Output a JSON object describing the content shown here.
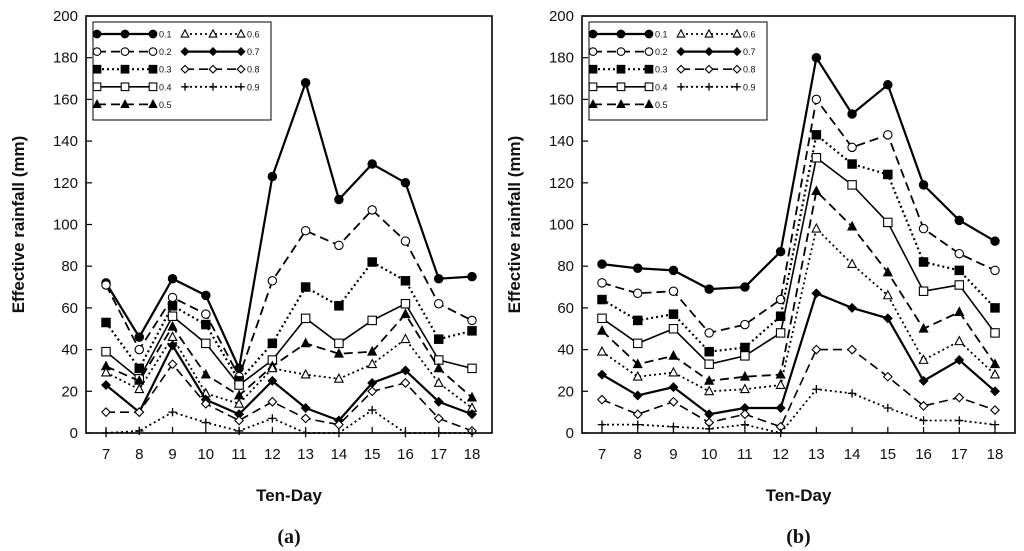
{
  "chart_data": [
    {
      "type": "line",
      "panel_label": "(a)",
      "xlabel": "Ten-Day",
      "ylabel": "Effective rainfall (mm)",
      "xlim": [
        7,
        18
      ],
      "ylim": [
        0,
        200
      ],
      "x_ticks": [
        7,
        8,
        9,
        10,
        11,
        12,
        13,
        14,
        15,
        16,
        17,
        18
      ],
      "y_ticks": [
        0,
        20,
        40,
        60,
        80,
        100,
        120,
        140,
        160,
        180,
        200
      ],
      "grid": false,
      "legend_position": "top-left",
      "x": [
        7,
        8,
        9,
        10,
        11,
        12,
        13,
        14,
        15,
        16,
        17,
        18
      ],
      "series": [
        {
          "name": "0.1",
          "values": [
            72,
            46,
            74,
            66,
            31,
            123,
            168,
            112,
            129,
            120,
            74,
            75
          ]
        },
        {
          "name": "0.2",
          "values": [
            71,
            40,
            65,
            57,
            27,
            73,
            97,
            90,
            107,
            92,
            62,
            54
          ]
        },
        {
          "name": "0.3",
          "values": [
            53,
            31,
            61,
            52,
            25,
            43,
            70,
            61,
            82,
            73,
            45,
            49
          ]
        },
        {
          "name": "0.4",
          "values": [
            39,
            26,
            56,
            43,
            23,
            35,
            55,
            43,
            54,
            62,
            35,
            31
          ]
        },
        {
          "name": "0.5",
          "values": [
            32,
            25,
            51,
            28,
            18,
            32,
            43,
            38,
            39,
            57,
            31,
            17
          ]
        },
        {
          "name": "0.6",
          "values": [
            29,
            21,
            46,
            19,
            14,
            31,
            28,
            26,
            33,
            45,
            24,
            12
          ]
        },
        {
          "name": "0.7",
          "values": [
            23,
            10,
            42,
            16,
            9,
            25,
            12,
            6,
            24,
            30,
            15,
            9
          ]
        },
        {
          "name": "0.8",
          "values": [
            10,
            10,
            33,
            14,
            6,
            15,
            7,
            4,
            20,
            24,
            7,
            1
          ]
        },
        {
          "name": "0.9",
          "values": [
            0,
            1,
            10,
            5,
            1,
            7,
            0,
            0,
            11,
            0,
            0,
            0
          ]
        }
      ]
    },
    {
      "type": "line",
      "panel_label": "(b)",
      "xlabel": "Ten-Day",
      "ylabel": "Effective rainfall (mm)",
      "xlim": [
        7,
        18
      ],
      "ylim": [
        0,
        200
      ],
      "x_ticks": [
        7,
        8,
        9,
        10,
        11,
        12,
        13,
        14,
        15,
        16,
        17,
        18
      ],
      "y_ticks": [
        0,
        20,
        40,
        60,
        80,
        100,
        120,
        140,
        160,
        180,
        200
      ],
      "grid": false,
      "legend_position": "top-left",
      "x": [
        7,
        8,
        9,
        10,
        11,
        12,
        13,
        14,
        15,
        16,
        17,
        18
      ],
      "series": [
        {
          "name": "0.1",
          "values": [
            81,
            79,
            78,
            69,
            70,
            87,
            180,
            153,
            167,
            119,
            102,
            92
          ]
        },
        {
          "name": "0.2",
          "values": [
            72,
            67,
            68,
            48,
            52,
            64,
            160,
            137,
            143,
            98,
            86,
            78
          ]
        },
        {
          "name": "0.3",
          "values": [
            64,
            54,
            57,
            39,
            41,
            56,
            143,
            129,
            124,
            82,
            78,
            60
          ]
        },
        {
          "name": "0.4",
          "values": [
            55,
            43,
            50,
            33,
            37,
            48,
            132,
            119,
            101,
            68,
            71,
            48
          ]
        },
        {
          "name": "0.5",
          "values": [
            49,
            33,
            37,
            25,
            27,
            28,
            116,
            99,
            77,
            50,
            58,
            33
          ]
        },
        {
          "name": "0.6",
          "values": [
            39,
            27,
            29,
            20,
            21,
            23,
            98,
            81,
            66,
            35,
            44,
            28
          ]
        },
        {
          "name": "0.7",
          "values": [
            28,
            18,
            22,
            9,
            12,
            12,
            67,
            60,
            55,
            25,
            35,
            20
          ]
        },
        {
          "name": "0.8",
          "values": [
            16,
            9,
            15,
            5,
            9,
            3,
            40,
            40,
            27,
            13,
            17,
            11
          ]
        },
        {
          "name": "0.9",
          "values": [
            4,
            4,
            3,
            2,
            4,
            0,
            21,
            19,
            12,
            6,
            6,
            4
          ]
        }
      ]
    }
  ]
}
